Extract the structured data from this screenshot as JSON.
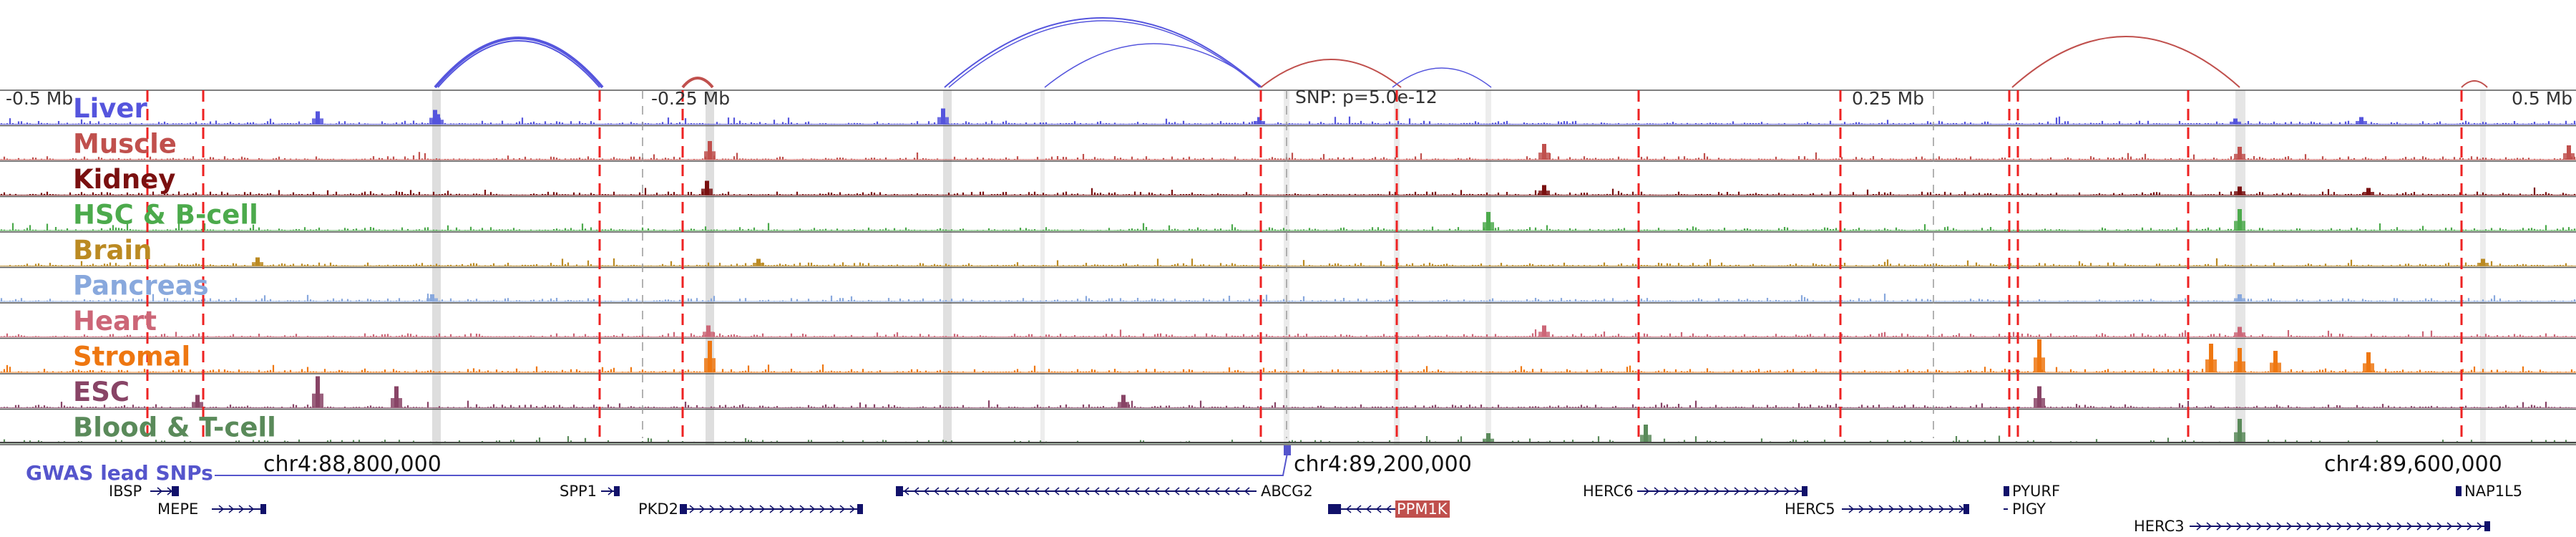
{
  "viewer": {
    "position_ticks": [
      "-0.5 Mb",
      "-0.25 Mb",
      "0.25 Mb",
      "0.5 Mb"
    ],
    "snp_label": "SNP: p=5.0e-12",
    "coordinates": [
      "chr4:88,800,000",
      "chr4:89,200,000",
      "chr4:89,600,000"
    ],
    "gwas_label": "GWAS lead SNPs",
    "highlight_color": "#c0504d"
  },
  "tracks": [
    {
      "name": "Liver",
      "color": "#5555dd"
    },
    {
      "name": "Muscle",
      "color": "#c0504d"
    },
    {
      "name": "Kidney",
      "color": "#7a1010"
    },
    {
      "name": "HSC & B-cell",
      "color": "#4caa4c"
    },
    {
      "name": "Brain",
      "color": "#bb8a22"
    },
    {
      "name": "Pancreas",
      "color": "#88a8dd"
    },
    {
      "name": "Heart",
      "color": "#cc6677"
    },
    {
      "name": "Stromal",
      "color": "#ee7711"
    },
    {
      "name": "ESC",
      "color": "#884466"
    },
    {
      "name": "Blood & T-cell",
      "color": "#5a8a5a"
    }
  ],
  "genes": [
    {
      "name": "IBSP",
      "strand": "+"
    },
    {
      "name": "MEPE",
      "strand": "+"
    },
    {
      "name": "SPP1",
      "strand": "+"
    },
    {
      "name": "PKD2",
      "strand": "+"
    },
    {
      "name": "ABCG2",
      "strand": "-"
    },
    {
      "name": "PPM1K",
      "strand": "-",
      "highlighted": true
    },
    {
      "name": "HERC6",
      "strand": "+"
    },
    {
      "name": "HERC5",
      "strand": "+"
    },
    {
      "name": "PYURF",
      "strand": "+"
    },
    {
      "name": "PIGY",
      "strand": "+"
    },
    {
      "name": "HERC3",
      "strand": "+"
    },
    {
      "name": "NAP1L5",
      "strand": "+"
    }
  ]
}
